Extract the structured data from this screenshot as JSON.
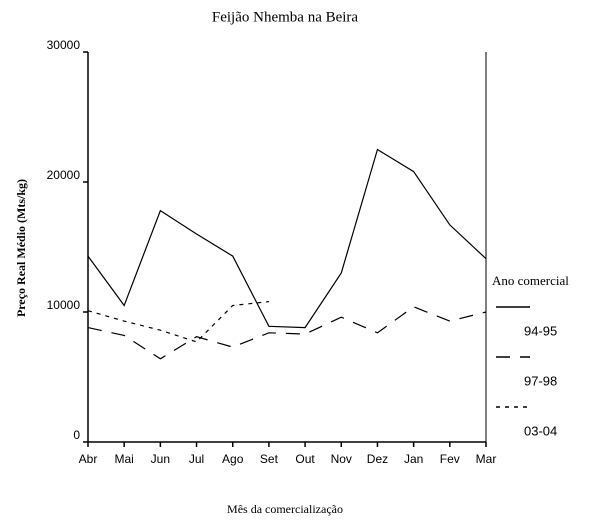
{
  "chart_data": {
    "type": "line",
    "title": "Feijão Nhemba na Beira",
    "x_label": "Mês da comercialização",
    "y_label": "Preço Real Médio (Mts/kg)",
    "legend_title": "Ano comercial",
    "legend_position": "right",
    "categories": [
      "Abr",
      "Mai",
      "Jun",
      "Jul",
      "Ago",
      "Set",
      "Out",
      "Nov",
      "Dez",
      "Jan",
      "Fev",
      "Mar"
    ],
    "series": [
      {
        "name": "94-95",
        "color": "#000000",
        "line_style": "solid",
        "values": [
          14300,
          10500,
          17800,
          16000,
          14300,
          8900,
          8800,
          13000,
          22500,
          20800,
          16700,
          14100
        ]
      },
      {
        "name": "97-98",
        "color": "#000000",
        "line_style": "dashed",
        "values": [
          8800,
          8200,
          6400,
          8100,
          7300,
          8400,
          8300,
          9600,
          8400,
          10400,
          9300,
          10000
        ]
      },
      {
        "name": "03-04",
        "color": "#000000",
        "line_style": "dotted",
        "values": [
          10100,
          9300,
          8600,
          7700,
          10500,
          10800,
          null,
          null,
          null,
          null,
          null,
          null
        ]
      }
    ],
    "ylim": [
      0,
      30000
    ],
    "yticks": [
      0,
      10000,
      20000,
      30000
    ],
    "grid": false
  }
}
